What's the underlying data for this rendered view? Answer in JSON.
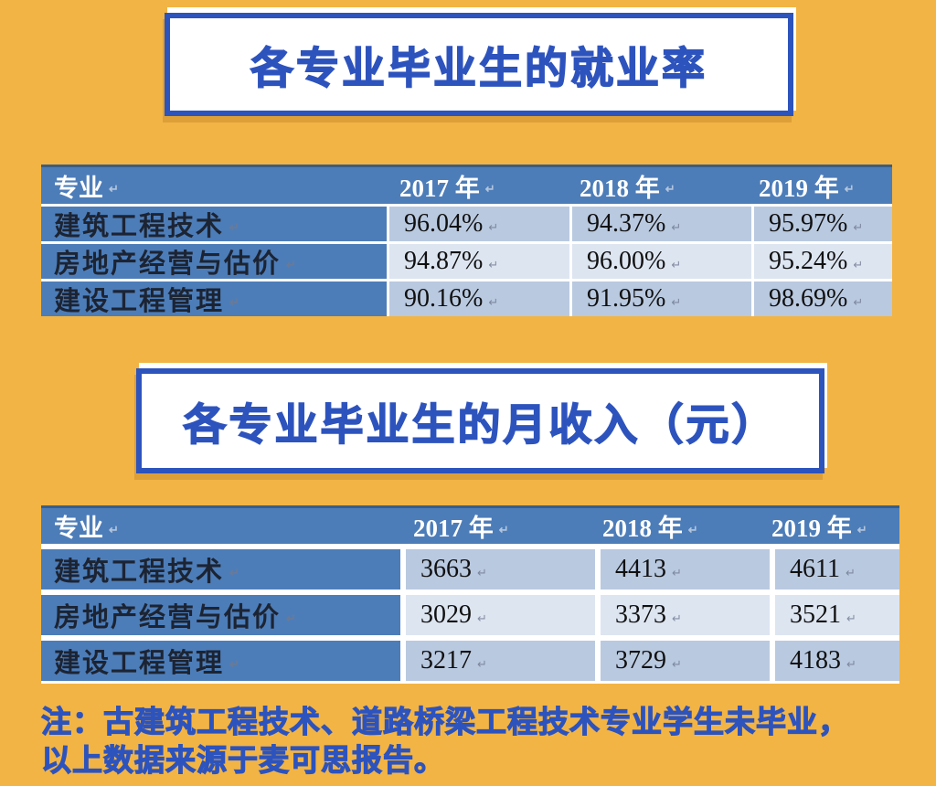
{
  "page": {
    "background_color": "#f2b444",
    "accent_blue": "#2d53bd",
    "table_header_blue": "#4d7db8",
    "row_band_mid": "#b9c9e0",
    "row_band_light": "#dde5f1"
  },
  "titles": [
    {
      "text": "各专业毕业生的就业率"
    },
    {
      "text": "各专业毕业生的月收入（元）"
    }
  ],
  "eom_mark": "↵",
  "tables": [
    {
      "id": "employment-rate-table",
      "headers": [
        "专业",
        "2017 年",
        "2018 年",
        "2019 年"
      ],
      "rows": [
        {
          "label": "建筑工程技术",
          "values": [
            "96.04%",
            "94.37%",
            "95.97%"
          ]
        },
        {
          "label": "房地产经营与估价",
          "values": [
            "94.87%",
            "96.00%",
            "95.24%"
          ]
        },
        {
          "label": "建设工程管理",
          "values": [
            "90.16%",
            "91.95%",
            "98.69%"
          ]
        }
      ]
    },
    {
      "id": "monthly-income-table",
      "headers": [
        "专业",
        "2017 年",
        "2018 年",
        "2019 年"
      ],
      "rows": [
        {
          "label": "建筑工程技术",
          "values": [
            "3663",
            "4413",
            "4611"
          ]
        },
        {
          "label": "房地产经营与估价",
          "values": [
            "3029",
            "3373",
            "3521"
          ]
        },
        {
          "label": "建设工程管理",
          "values": [
            "3217",
            "3729",
            "4183"
          ]
        }
      ]
    }
  ],
  "note": {
    "line1": "注：古建筑工程技术、道路桥梁工程技术专业学生未毕业，",
    "line2": "以上数据来源于麦可思报告。"
  }
}
